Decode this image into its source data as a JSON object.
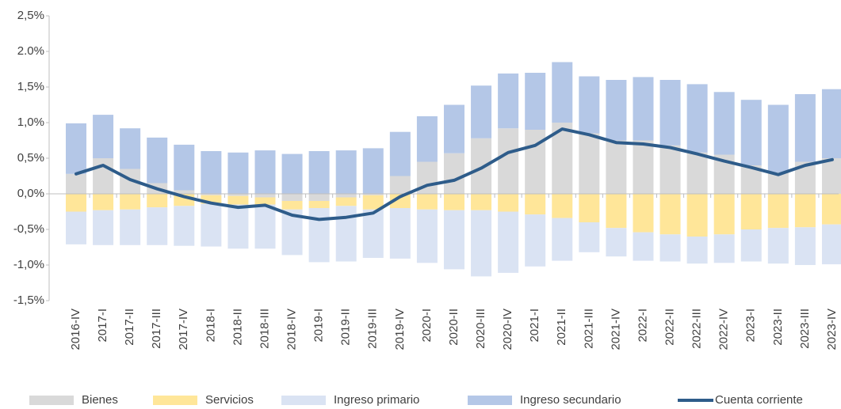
{
  "chart_data": {
    "type": "bar",
    "stacked": true,
    "categories": [
      "2016-IV",
      "2017-I",
      "2017-II",
      "2017-III",
      "2017-IV",
      "2018-I",
      "2018-II",
      "2018-III",
      "2018-IV",
      "2019-I",
      "2019-II",
      "2019-III",
      "2019-IV",
      "2020-I",
      "2020-II",
      "2020-III",
      "2020-IV",
      "2021-I",
      "2021-II",
      "2021-III",
      "2021-IV",
      "2022-I",
      "2022-II",
      "2022-III",
      "2022-IV",
      "2023-I",
      "2023-II",
      "2023-III",
      "2023-IV"
    ],
    "ylim": [
      -1.5,
      2.5
    ],
    "yticks": [
      {
        "value": -1.5,
        "label": "-1,5%"
      },
      {
        "value": -1.0,
        "label": "-1,0%"
      },
      {
        "value": -0.5,
        "label": "-0,5%"
      },
      {
        "value": 0,
        "label": "0,0%"
      },
      {
        "value": 0.5,
        "label": "0,5%"
      },
      {
        "value": 1.0,
        "label": "1,0%"
      },
      {
        "value": 1.5,
        "label": "1,5%"
      },
      {
        "value": 2.0,
        "label": "2.0%"
      },
      {
        "value": 2.5,
        "label": "2,5%"
      }
    ],
    "grid": false,
    "legend": "bottom",
    "series": [
      {
        "name": "Bienes",
        "color": "#d9d9d9",
        "values": [
          0.28,
          0.5,
          0.35,
          0.15,
          0.05,
          -0.02,
          -0.03,
          -0.05,
          -0.1,
          -0.1,
          -0.05,
          -0.02,
          0.25,
          0.45,
          0.57,
          0.78,
          0.92,
          0.9,
          1.0,
          0.85,
          0.75,
          0.75,
          0.68,
          0.58,
          0.55,
          0.4,
          0.3,
          0.45,
          0.5
        ]
      },
      {
        "name": "Servicios",
        "color": "#ffe699",
        "values": [
          -0.25,
          -0.23,
          -0.22,
          -0.19,
          -0.17,
          -0.12,
          -0.12,
          -0.1,
          -0.12,
          -0.1,
          -0.12,
          -0.2,
          -0.2,
          -0.22,
          -0.23,
          -0.23,
          -0.25,
          -0.29,
          -0.34,
          -0.4,
          -0.48,
          -0.54,
          -0.57,
          -0.6,
          -0.57,
          -0.5,
          -0.48,
          -0.47,
          -0.43
        ]
      },
      {
        "name": "Ingreso primario",
        "color": "#dae3f3",
        "values": [
          -0.46,
          -0.49,
          -0.5,
          -0.53,
          -0.56,
          -0.6,
          -0.62,
          -0.62,
          -0.64,
          -0.76,
          -0.78,
          -0.68,
          -0.71,
          -0.75,
          -0.83,
          -0.93,
          -0.86,
          -0.73,
          -0.6,
          -0.42,
          -0.4,
          -0.4,
          -0.38,
          -0.38,
          -0.4,
          -0.45,
          -0.5,
          -0.53,
          -0.56
        ]
      },
      {
        "name": "Ingreso secundario",
        "color": "#b4c7e7",
        "values": [
          0.71,
          0.61,
          0.57,
          0.64,
          0.64,
          0.6,
          0.58,
          0.61,
          0.56,
          0.6,
          0.61,
          0.64,
          0.62,
          0.64,
          0.68,
          0.74,
          0.77,
          0.8,
          0.85,
          0.8,
          0.85,
          0.89,
          0.92,
          0.96,
          0.88,
          0.92,
          0.95,
          0.95,
          0.97
        ]
      },
      {
        "name": "Cuenta corriente",
        "type": "line",
        "color": "#2e5c8a",
        "values": [
          0.28,
          0.4,
          0.2,
          0.07,
          -0.04,
          -0.13,
          -0.19,
          -0.16,
          -0.3,
          -0.36,
          -0.33,
          -0.27,
          -0.04,
          0.12,
          0.19,
          0.36,
          0.58,
          0.68,
          0.91,
          0.83,
          0.72,
          0.7,
          0.65,
          0.56,
          0.46,
          0.37,
          0.27,
          0.4,
          0.48
        ]
      }
    ]
  }
}
